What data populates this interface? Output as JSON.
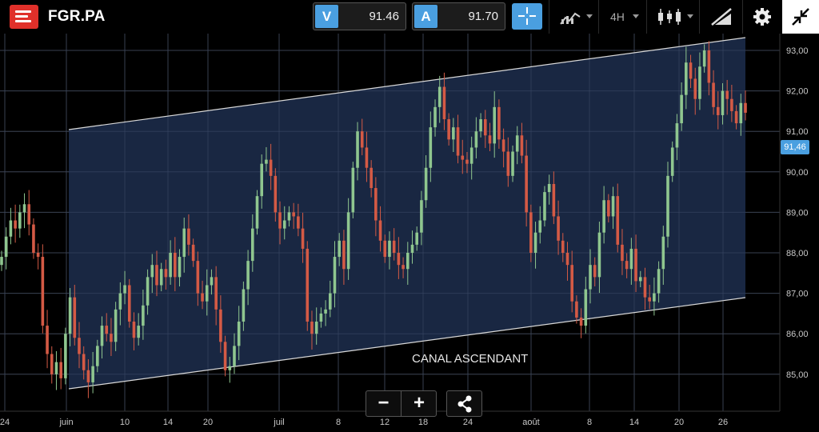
{
  "header": {
    "ticker": "FGR.PA",
    "sell": {
      "label": "V",
      "value": "91.46"
    },
    "buy": {
      "label": "A",
      "value": "91.70"
    },
    "timeframe": "4H"
  },
  "chart": {
    "current_price_label": "91,46",
    "annotation": "CANAL ASCENDANT",
    "zoom_out_label": "−",
    "zoom_in_label": "+"
  },
  "chart_data": {
    "type": "candlestick",
    "y_axis": {
      "ticks": [
        "85,00",
        "86,00",
        "87,00",
        "88,00",
        "89,00",
        "90,00",
        "91,00",
        "92,00",
        "93,00"
      ],
      "min": 84.5,
      "max": 93.5
    },
    "x_axis": {
      "ticks": [
        "24",
        "juin",
        "10",
        "14",
        "20",
        "juil",
        "8",
        "12",
        "18",
        "24",
        "août",
        "8",
        "14",
        "20",
        "26"
      ]
    },
    "current_price": 91.46,
    "channel": {
      "label": "CANAL ASCENDANT",
      "upper": [
        {
          "x": "juin",
          "y": 91.0
        },
        {
          "x": "end",
          "y": 93.3
        }
      ],
      "lower": [
        {
          "x": "juin",
          "y": 84.6
        },
        {
          "x": "end",
          "y": 86.9
        }
      ]
    },
    "colors": {
      "up": "#8fc68f",
      "down": "#d45a45",
      "channel_fill": "#1b2a48",
      "channel_line": "#d8d8d8",
      "accent": "#4a9fe0"
    },
    "closes": [
      87.9,
      88.4,
      88.8,
      88.6,
      89.0,
      89.2,
      88.7,
      88.0,
      87.9,
      86.2,
      85.5,
      85.0,
      85.3,
      84.9,
      86.0,
      86.9,
      85.9,
      85.5,
      85.1,
      84.8,
      85.2,
      85.7,
      86.2,
      86.0,
      85.8,
      86.6,
      87.0,
      87.2,
      86.3,
      85.9,
      86.2,
      86.7,
      87.4,
      87.7,
      87.2,
      87.6,
      87.4,
      88.0,
      87.4,
      87.9,
      88.6,
      88.2,
      87.8,
      87.0,
      86.8,
      87.2,
      87.4,
      86.6,
      85.8,
      85.1,
      85.2,
      85.7,
      86.3,
      87.1,
      87.8,
      88.6,
      89.4,
      90.2,
      90.3,
      89.9,
      89.0,
      88.6,
      88.8,
      89.0,
      88.9,
      88.6,
      88.1,
      86.3,
      86.0,
      86.3,
      86.5,
      86.6,
      87.0,
      87.9,
      88.3,
      87.6,
      89.0,
      90.1,
      91.0,
      90.6,
      90.1,
      89.6,
      88.8,
      88.3,
      87.9,
      88.3,
      88.0,
      87.7,
      87.6,
      88.0,
      88.2,
      88.5,
      89.3,
      90.1,
      91.1,
      91.6,
      92.1,
      91.3,
      90.8,
      91.1,
      90.4,
      90.3,
      90.2,
      90.6,
      91.0,
      91.3,
      90.9,
      90.7,
      91.6,
      90.8,
      90.5,
      89.9,
      90.5,
      90.9,
      90.4,
      89.0,
      88.0,
      88.5,
      88.8,
      89.5,
      89.7,
      88.9,
      88.3,
      88.0,
      87.7,
      86.8,
      86.4,
      86.2,
      87.1,
      87.7,
      87.4,
      88.5,
      89.3,
      88.9,
      89.4,
      88.2,
      87.8,
      87.6,
      88.1,
      87.3,
      87.4,
      86.9,
      86.8,
      87.0,
      87.6,
      88.4,
      89.9,
      90.6,
      91.2,
      91.9,
      92.7,
      92.3,
      91.8,
      92.6,
      93.0,
      92.2,
      91.6,
      91.4,
      92.0,
      91.8,
      91.5,
      91.2,
      91.7,
      91.46
    ]
  }
}
